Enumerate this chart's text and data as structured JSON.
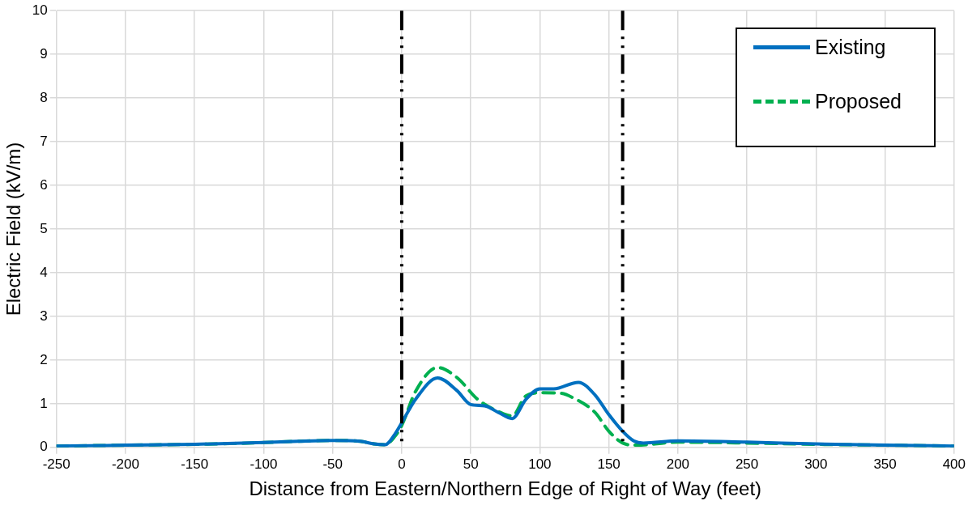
{
  "chart_data": {
    "type": "line",
    "xlabel": "Distance from Eastern/Northern Edge of Right of Way (feet)",
    "ylabel": "Electric Field (kV/m)",
    "xlim": [
      -250,
      400
    ],
    "xticks": [
      -250,
      -200,
      -150,
      -100,
      -50,
      0,
      50,
      100,
      150,
      200,
      250,
      300,
      350,
      400
    ],
    "ylim": [
      0,
      10
    ],
    "yticks": [
      0,
      1,
      2,
      3,
      4,
      5,
      6,
      7,
      8,
      9,
      10
    ],
    "grid": true,
    "legend": "top right",
    "series": [
      {
        "name": "Existing",
        "color": "#0070c0",
        "line_style": "solid",
        "x": [
          -250,
          -200,
          -150,
          -100,
          -75,
          -50,
          -30,
          -20,
          -12,
          -5,
          0,
          10,
          26,
          40,
          50,
          60,
          70,
          80,
          90,
          100,
          110,
          128,
          140,
          150,
          160,
          168,
          175,
          200,
          250,
          300,
          350,
          400
        ],
        "values": [
          0.03,
          0.05,
          0.07,
          0.11,
          0.14,
          0.16,
          0.14,
          0.08,
          0.06,
          0.3,
          0.56,
          1.1,
          1.59,
          1.3,
          0.98,
          0.95,
          0.8,
          0.66,
          1.1,
          1.34,
          1.34,
          1.49,
          1.2,
          0.75,
          0.37,
          0.15,
          0.1,
          0.15,
          0.12,
          0.08,
          0.05,
          0.03
        ]
      },
      {
        "name": "Proposed",
        "color": "#00b050",
        "line_style": "dashed",
        "x": [
          -250,
          -200,
          -150,
          -100,
          -75,
          -50,
          -30,
          -20,
          -12,
          -5,
          0,
          10,
          26,
          40,
          55,
          70,
          80,
          90,
          100,
          115,
          125,
          140,
          150,
          160,
          170,
          200,
          250,
          300,
          350,
          400
        ],
        "values": [
          0.03,
          0.05,
          0.07,
          0.11,
          0.14,
          0.16,
          0.14,
          0.08,
          0.06,
          0.25,
          0.5,
          1.28,
          1.83,
          1.6,
          1.1,
          0.82,
          0.72,
          1.18,
          1.25,
          1.24,
          1.12,
          0.8,
          0.37,
          0.1,
          0.05,
          0.12,
          0.1,
          0.07,
          0.05,
          0.03
        ]
      }
    ],
    "ref_lines": [
      {
        "axis": "x",
        "value": 0,
        "color": "#000000",
        "line_style": "dashdotdot"
      },
      {
        "axis": "x",
        "value": 160,
        "color": "#000000",
        "line_style": "dashdotdot"
      }
    ]
  }
}
